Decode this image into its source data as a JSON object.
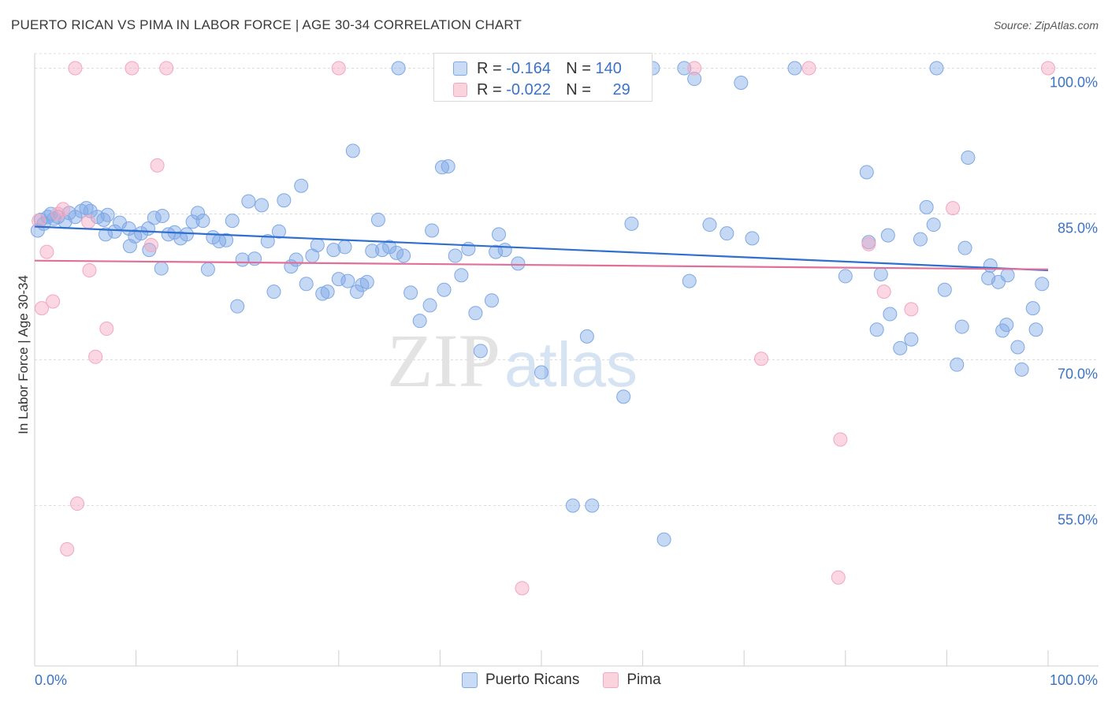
{
  "title": "PUERTO RICAN VS PIMA IN LABOR FORCE | AGE 30-34 CORRELATION CHART",
  "source": "Source: ZipAtlas.com",
  "watermark": "ZIPatlas",
  "legend_box": {
    "rows": [
      {
        "r_label": "R =",
        "r_value": "-0.164",
        "n_label": "N =",
        "n_value": "140"
      },
      {
        "r_label": "R =",
        "r_value": "-0.022",
        "n_label": "N =",
        "n_value": "29"
      }
    ]
  },
  "bottom_legend": [
    "Puerto Ricans",
    "Pima"
  ],
  "chart_data": {
    "type": "scatter",
    "title": "PUERTO RICAN VS PIMA IN LABOR FORCE | AGE 30-34 CORRELATION CHART",
    "ylabel": "In Labor Force | Age 30-34",
    "xlabel": "",
    "x_tick_labels": [
      "0.0%",
      "100.0%"
    ],
    "y_tick_labels": [
      "100.0%",
      "85.0%",
      "70.0%",
      "55.0%"
    ],
    "y_ticks": [
      100,
      85,
      70,
      55
    ],
    "xlim": [
      0,
      100
    ],
    "ylim": [
      38.5,
      101.5
    ],
    "grid": true,
    "legend_position": "top-center",
    "colors": {
      "puerto_ricans": "#7ea8e6",
      "pima": "#f4a7bf",
      "pr_line": "#2f6fcf",
      "pima_line": "#e0709a"
    },
    "series": [
      {
        "name": "Puerto Ricans",
        "trend": [
          [
            0,
            83.7
          ],
          [
            100,
            79.2
          ]
        ],
        "points": [
          [
            0.3,
            83.3
          ],
          [
            0.6,
            84.4
          ],
          [
            0.9,
            84.0
          ],
          [
            1.3,
            84.7
          ],
          [
            1.6,
            85.0
          ],
          [
            1.9,
            84.5
          ],
          [
            2.3,
            84.7
          ],
          [
            3.0,
            84.2
          ],
          [
            3.4,
            85.1
          ],
          [
            4.0,
            84.7
          ],
          [
            4.6,
            85.3
          ],
          [
            5.1,
            85.6
          ],
          [
            5.5,
            85.3
          ],
          [
            6.2,
            84.7
          ],
          [
            6.8,
            84.4
          ],
          [
            7.2,
            84.9
          ],
          [
            7.9,
            83.2
          ],
          [
            8.4,
            84.1
          ],
          [
            9.3,
            83.5
          ],
          [
            9.9,
            82.7
          ],
          [
            10.5,
            83.0
          ],
          [
            11.2,
            83.5
          ],
          [
            11.8,
            84.6
          ],
          [
            12.6,
            84.8
          ],
          [
            13.2,
            82.9
          ],
          [
            13.8,
            83.1
          ],
          [
            14.4,
            82.5
          ],
          [
            15.0,
            82.9
          ],
          [
            15.6,
            84.2
          ],
          [
            16.1,
            85.1
          ],
          [
            16.6,
            84.3
          ],
          [
            7.0,
            82.9
          ],
          [
            9.4,
            81.7
          ],
          [
            11.3,
            81.3
          ],
          [
            12.5,
            79.4
          ],
          [
            17.1,
            79.3
          ],
          [
            17.6,
            82.6
          ],
          [
            18.2,
            82.2
          ],
          [
            18.9,
            82.3
          ],
          [
            19.5,
            84.3
          ],
          [
            20.0,
            75.5
          ],
          [
            20.5,
            80.3
          ],
          [
            21.1,
            86.3
          ],
          [
            21.7,
            80.4
          ],
          [
            22.4,
            85.9
          ],
          [
            23.0,
            82.2
          ],
          [
            23.6,
            77.0
          ],
          [
            24.1,
            83.2
          ],
          [
            24.6,
            86.4
          ],
          [
            25.3,
            79.6
          ],
          [
            25.8,
            80.3
          ],
          [
            26.3,
            87.9
          ],
          [
            26.8,
            77.8
          ],
          [
            27.4,
            80.7
          ],
          [
            27.9,
            81.8
          ],
          [
            28.4,
            76.8
          ],
          [
            28.9,
            77.0
          ],
          [
            29.5,
            81.3
          ],
          [
            30.0,
            78.3
          ],
          [
            30.6,
            81.6
          ],
          [
            30.9,
            78.1
          ],
          [
            31.4,
            91.5
          ],
          [
            31.8,
            77.0
          ],
          [
            32.3,
            77.7
          ],
          [
            32.8,
            78.0
          ],
          [
            33.3,
            81.2
          ],
          [
            33.9,
            84.4
          ],
          [
            34.3,
            81.3
          ],
          [
            35.0,
            81.6
          ],
          [
            35.7,
            81.0
          ],
          [
            35.9,
            100.0
          ],
          [
            36.4,
            80.7
          ],
          [
            37.1,
            76.9
          ],
          [
            38.0,
            74.0
          ],
          [
            39.0,
            75.6
          ],
          [
            39.2,
            83.3
          ],
          [
            40.2,
            89.8
          ],
          [
            40.8,
            89.9
          ],
          [
            40.4,
            77.2
          ],
          [
            41.5,
            80.7
          ],
          [
            42.1,
            78.7
          ],
          [
            42.8,
            81.4
          ],
          [
            43.5,
            74.8
          ],
          [
            44.0,
            70.9
          ],
          [
            45.1,
            76.1
          ],
          [
            45.8,
            82.9
          ],
          [
            45.5,
            81.1
          ],
          [
            46.4,
            81.3
          ],
          [
            47.7,
            79.9
          ],
          [
            47.9,
            100.0
          ],
          [
            50.0,
            68.7
          ],
          [
            53.1,
            55.0
          ],
          [
            54.5,
            72.4
          ],
          [
            55.0,
            55.0
          ],
          [
            55.9,
            100.0
          ],
          [
            58.1,
            66.2
          ],
          [
            58.6,
            100.0
          ],
          [
            58.9,
            84.0
          ],
          [
            61.0,
            100.0
          ],
          [
            62.1,
            51.5
          ],
          [
            64.1,
            100.0
          ],
          [
            64.6,
            78.1
          ],
          [
            65.1,
            98.9
          ],
          [
            66.6,
            83.9
          ],
          [
            68.3,
            83.0
          ],
          [
            69.7,
            98.5
          ],
          [
            70.8,
            82.5
          ],
          [
            75.0,
            100.0
          ],
          [
            80.0,
            78.6
          ],
          [
            82.1,
            89.3
          ],
          [
            82.3,
            82.1
          ],
          [
            83.1,
            73.1
          ],
          [
            83.5,
            78.8
          ],
          [
            84.2,
            82.8
          ],
          [
            84.4,
            74.7
          ],
          [
            85.4,
            71.2
          ],
          [
            86.5,
            72.1
          ],
          [
            87.4,
            82.4
          ],
          [
            88.0,
            85.7
          ],
          [
            88.7,
            83.9
          ],
          [
            89.0,
            100.0
          ],
          [
            89.8,
            77.2
          ],
          [
            91.0,
            69.5
          ],
          [
            91.8,
            81.5
          ],
          [
            91.5,
            73.4
          ],
          [
            92.1,
            90.8
          ],
          [
            94.1,
            78.4
          ],
          [
            94.3,
            79.7
          ],
          [
            95.1,
            78.0
          ],
          [
            95.5,
            73.0
          ],
          [
            95.9,
            73.6
          ],
          [
            96.0,
            78.7
          ],
          [
            97.0,
            71.3
          ],
          [
            97.4,
            69.0
          ],
          [
            98.5,
            75.3
          ],
          [
            98.8,
            73.1
          ],
          [
            99.4,
            77.8
          ]
        ]
      },
      {
        "name": "Pima",
        "trend": [
          [
            0,
            80.2
          ],
          [
            100,
            79.3
          ]
        ],
        "points": [
          [
            0.4,
            84.3
          ],
          [
            0.7,
            75.3
          ],
          [
            1.2,
            81.1
          ],
          [
            1.8,
            76.0
          ],
          [
            2.3,
            85.0
          ],
          [
            2.8,
            85.5
          ],
          [
            3.2,
            50.5
          ],
          [
            4.2,
            55.2
          ],
          [
            4.0,
            100.0
          ],
          [
            5.4,
            79.2
          ],
          [
            6.0,
            70.3
          ],
          [
            7.1,
            73.2
          ],
          [
            9.6,
            100.0
          ],
          [
            12.1,
            90.0
          ],
          [
            11.5,
            81.8
          ],
          [
            13.0,
            100.0
          ],
          [
            30.0,
            100.0
          ],
          [
            48.1,
            46.5
          ],
          [
            65.1,
            100.0
          ],
          [
            71.7,
            70.1
          ],
          [
            76.4,
            100.0
          ],
          [
            79.5,
            61.8
          ],
          [
            79.3,
            47.6
          ],
          [
            82.3,
            81.9
          ],
          [
            83.8,
            77.0
          ],
          [
            86.5,
            75.2
          ],
          [
            90.6,
            85.6
          ],
          [
            100.0,
            100.0
          ],
          [
            5.3,
            84.2
          ]
        ]
      }
    ]
  }
}
